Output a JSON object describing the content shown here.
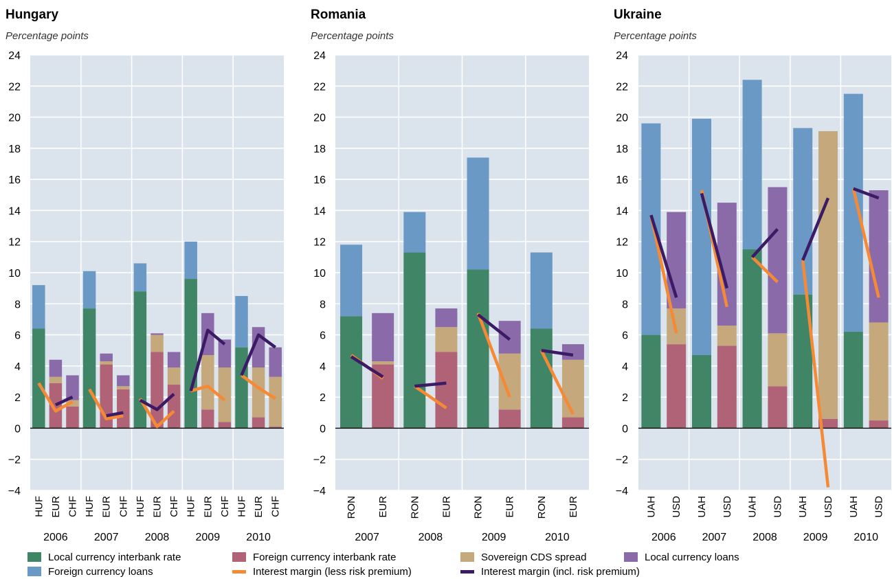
{
  "colors": {
    "local_interbank": "#3f8566",
    "foreign_interbank": "#b06377",
    "cds": "#c5a87b",
    "local_loans": "#8a6aa8",
    "foreign_loans": "#6b99c6",
    "margin_less": "#f58a36",
    "margin_incl": "#3b1b65",
    "plot_bg": "#dbe3ed"
  },
  "legend": [
    {
      "key": "local_interbank",
      "label": "Local currency interbank rate",
      "kind": "box"
    },
    {
      "key": "foreign_interbank",
      "label": "Foreign currency interbank rate",
      "kind": "box"
    },
    {
      "key": "cds",
      "label": "Sovereign CDS spread",
      "kind": "box"
    },
    {
      "key": "local_loans",
      "label": "Local currency loans",
      "kind": "box"
    },
    {
      "key": "foreign_loans",
      "label": "Foreign currency loans",
      "kind": "box"
    },
    {
      "key": "margin_less",
      "label": "Interest margin (less risk premium)",
      "kind": "line"
    },
    {
      "key": "margin_incl",
      "label": "Interest margin (incl. risk premium)",
      "kind": "line"
    }
  ],
  "chart_data": [
    {
      "type": "bar",
      "title": "Hungary",
      "subtitle": "Percentage points",
      "ylim": [
        -4,
        24
      ],
      "yticks": [
        -4,
        -2,
        0,
        2,
        4,
        6,
        8,
        10,
        12,
        14,
        16,
        18,
        20,
        22,
        24
      ],
      "years": [
        "2006",
        "2007",
        "2008",
        "2009",
        "2010"
      ],
      "currencies": [
        "HUF",
        "EUR",
        "CHF"
      ],
      "bars": [
        {
          "year": "2006",
          "currency": "HUF",
          "base_key": "local_interbank",
          "base": 6.4,
          "cds": 0.0,
          "top_key": "foreign_loans",
          "total": 9.2
        },
        {
          "year": "2006",
          "currency": "EUR",
          "base_key": "foreign_interbank",
          "base": 2.9,
          "cds": 0.4,
          "top_key": "local_loans",
          "total": 4.4
        },
        {
          "year": "2006",
          "currency": "CHF",
          "base_key": "foreign_interbank",
          "base": 1.4,
          "cds": 0.4,
          "top_key": "local_loans",
          "total": 3.4
        },
        {
          "year": "2007",
          "currency": "HUF",
          "base_key": "local_interbank",
          "base": 7.7,
          "cds": 0.0,
          "top_key": "foreign_loans",
          "total": 10.1
        },
        {
          "year": "2007",
          "currency": "EUR",
          "base_key": "foreign_interbank",
          "base": 4.1,
          "cds": 0.2,
          "top_key": "local_loans",
          "total": 4.8
        },
        {
          "year": "2007",
          "currency": "CHF",
          "base_key": "foreign_interbank",
          "base": 2.5,
          "cds": 0.2,
          "top_key": "local_loans",
          "total": 3.4
        },
        {
          "year": "2008",
          "currency": "HUF",
          "base_key": "local_interbank",
          "base": 8.8,
          "cds": 0.0,
          "top_key": "foreign_loans",
          "total": 10.6
        },
        {
          "year": "2008",
          "currency": "EUR",
          "base_key": "foreign_interbank",
          "base": 4.9,
          "cds": 1.1,
          "top_key": "local_loans",
          "total": 6.1
        },
        {
          "year": "2008",
          "currency": "CHF",
          "base_key": "foreign_interbank",
          "base": 2.8,
          "cds": 1.1,
          "top_key": "local_loans",
          "total": 4.9
        },
        {
          "year": "2009",
          "currency": "HUF",
          "base_key": "local_interbank",
          "base": 9.6,
          "cds": 0.0,
          "top_key": "foreign_loans",
          "total": 12.0
        },
        {
          "year": "2009",
          "currency": "EUR",
          "base_key": "foreign_interbank",
          "base": 1.2,
          "cds": 3.5,
          "top_key": "local_loans",
          "total": 7.4
        },
        {
          "year": "2009",
          "currency": "CHF",
          "base_key": "foreign_interbank",
          "base": 0.4,
          "cds": 3.5,
          "top_key": "local_loans",
          "total": 5.7
        },
        {
          "year": "2010",
          "currency": "HUF",
          "base_key": "local_interbank",
          "base": 5.2,
          "cds": 0.0,
          "top_key": "foreign_loans",
          "total": 8.5
        },
        {
          "year": "2010",
          "currency": "EUR",
          "base_key": "foreign_interbank",
          "base": 0.7,
          "cds": 3.2,
          "top_key": "local_loans",
          "total": 6.5
        },
        {
          "year": "2010",
          "currency": "CHF",
          "base_key": "foreign_interbank",
          "base": 0.1,
          "cds": 3.2,
          "top_key": "local_loans",
          "total": 5.2
        }
      ],
      "margin_less_risk": [
        [
          2.9,
          1.1,
          1.7
        ],
        [
          2.5,
          0.6,
          0.8
        ],
        [
          1.9,
          0.1,
          1.1
        ],
        [
          2.4,
          2.7,
          1.8
        ],
        [
          3.4,
          2.6,
          1.9
        ]
      ],
      "margin_incl_risk": [
        [
          null,
          1.5,
          2.0
        ],
        [
          null,
          0.8,
          1.0
        ],
        [
          1.8,
          1.2,
          2.2
        ],
        [
          2.4,
          6.3,
          5.4
        ],
        [
          3.4,
          6.0,
          5.2
        ]
      ]
    },
    {
      "type": "bar",
      "title": "Romania",
      "subtitle": "Percentage points",
      "ylim": [
        -4,
        24
      ],
      "yticks": [
        -4,
        -2,
        0,
        2,
        4,
        6,
        8,
        10,
        12,
        14,
        16,
        18,
        20,
        22,
        24
      ],
      "years": [
        "2007",
        "2008",
        "2009",
        "2010"
      ],
      "currencies": [
        "RON",
        "EUR"
      ],
      "bars": [
        {
          "year": "2007",
          "currency": "RON",
          "base_key": "local_interbank",
          "base": 7.2,
          "cds": 0.0,
          "top_key": "foreign_loans",
          "total": 11.8
        },
        {
          "year": "2007",
          "currency": "EUR",
          "base_key": "foreign_interbank",
          "base": 4.1,
          "cds": 0.2,
          "top_key": "local_loans",
          "total": 7.4
        },
        {
          "year": "2008",
          "currency": "RON",
          "base_key": "local_interbank",
          "base": 11.3,
          "cds": 0.0,
          "top_key": "foreign_loans",
          "total": 13.9
        },
        {
          "year": "2008",
          "currency": "EUR",
          "base_key": "foreign_interbank",
          "base": 4.9,
          "cds": 1.6,
          "top_key": "local_loans",
          "total": 7.7
        },
        {
          "year": "2009",
          "currency": "RON",
          "base_key": "local_interbank",
          "base": 10.2,
          "cds": 0.0,
          "top_key": "foreign_loans",
          "total": 17.4
        },
        {
          "year": "2009",
          "currency": "EUR",
          "base_key": "foreign_interbank",
          "base": 1.2,
          "cds": 3.6,
          "top_key": "local_loans",
          "total": 6.9
        },
        {
          "year": "2010",
          "currency": "RON",
          "base_key": "local_interbank",
          "base": 6.4,
          "cds": 0.0,
          "top_key": "foreign_loans",
          "total": 11.3
        },
        {
          "year": "2010",
          "currency": "EUR",
          "base_key": "foreign_interbank",
          "base": 0.7,
          "cds": 3.7,
          "top_key": "local_loans",
          "total": 5.4
        }
      ],
      "margin_less_risk": [
        [
          4.7,
          3.2
        ],
        [
          2.7,
          1.3
        ],
        [
          7.4,
          2.0
        ],
        [
          5.0,
          0.9
        ]
      ],
      "margin_incl_risk": [
        [
          4.6,
          3.3
        ],
        [
          2.7,
          2.9
        ],
        [
          7.3,
          5.7
        ],
        [
          5.0,
          4.7
        ]
      ]
    },
    {
      "type": "bar",
      "title": "Ukraine",
      "subtitle": "Percentage points",
      "ylim": [
        -4,
        24
      ],
      "yticks": [
        -4,
        -2,
        0,
        2,
        4,
        6,
        8,
        10,
        12,
        14,
        16,
        18,
        20,
        22,
        24
      ],
      "years": [
        "2006",
        "2007",
        "2008",
        "2009",
        "2010"
      ],
      "currencies": [
        "UAH",
        "USD"
      ],
      "bars": [
        {
          "year": "2006",
          "currency": "UAH",
          "base_key": "local_interbank",
          "base": 6.0,
          "cds": 0.0,
          "top_key": "foreign_loans",
          "total": 19.6
        },
        {
          "year": "2006",
          "currency": "USD",
          "base_key": "foreign_interbank",
          "base": 5.4,
          "cds": 2.3,
          "top_key": "local_loans",
          "total": 13.9
        },
        {
          "year": "2007",
          "currency": "UAH",
          "base_key": "local_interbank",
          "base": 4.7,
          "cds": 0.0,
          "top_key": "foreign_loans",
          "total": 19.9
        },
        {
          "year": "2007",
          "currency": "USD",
          "base_key": "foreign_interbank",
          "base": 5.3,
          "cds": 1.3,
          "top_key": "local_loans",
          "total": 14.5
        },
        {
          "year": "2008",
          "currency": "UAH",
          "base_key": "local_interbank",
          "base": 11.5,
          "cds": 0.0,
          "top_key": "foreign_loans",
          "total": 22.4
        },
        {
          "year": "2008",
          "currency": "USD",
          "base_key": "foreign_interbank",
          "base": 2.7,
          "cds": 3.4,
          "top_key": "local_loans",
          "total": 15.5
        },
        {
          "year": "2009",
          "currency": "UAH",
          "base_key": "local_interbank",
          "base": 8.6,
          "cds": 0.0,
          "top_key": "foreign_loans",
          "total": 19.3
        },
        {
          "year": "2009",
          "currency": "USD",
          "base_key": "foreign_interbank",
          "base": 0.6,
          "cds": 18.5,
          "top_key": "local_loans",
          "total": 19.1
        },
        {
          "year": "2010",
          "currency": "UAH",
          "base_key": "local_interbank",
          "base": 6.2,
          "cds": 0.0,
          "top_key": "foreign_loans",
          "total": 21.5
        },
        {
          "year": "2010",
          "currency": "USD",
          "base_key": "foreign_interbank",
          "base": 0.5,
          "cds": 6.3,
          "top_key": "local_loans",
          "total": 15.3
        }
      ],
      "margin_less_risk": [
        [
          13.7,
          6.1
        ],
        [
          15.3,
          7.8
        ],
        [
          11.0,
          9.4
        ],
        [
          10.8,
          -3.8
        ],
        [
          15.4,
          8.4
        ]
      ],
      "margin_incl_risk": [
        [
          13.7,
          8.4
        ],
        [
          15.1,
          9.0
        ],
        [
          11.0,
          12.8
        ],
        [
          10.8,
          14.8
        ],
        [
          15.4,
          14.8
        ]
      ]
    }
  ]
}
